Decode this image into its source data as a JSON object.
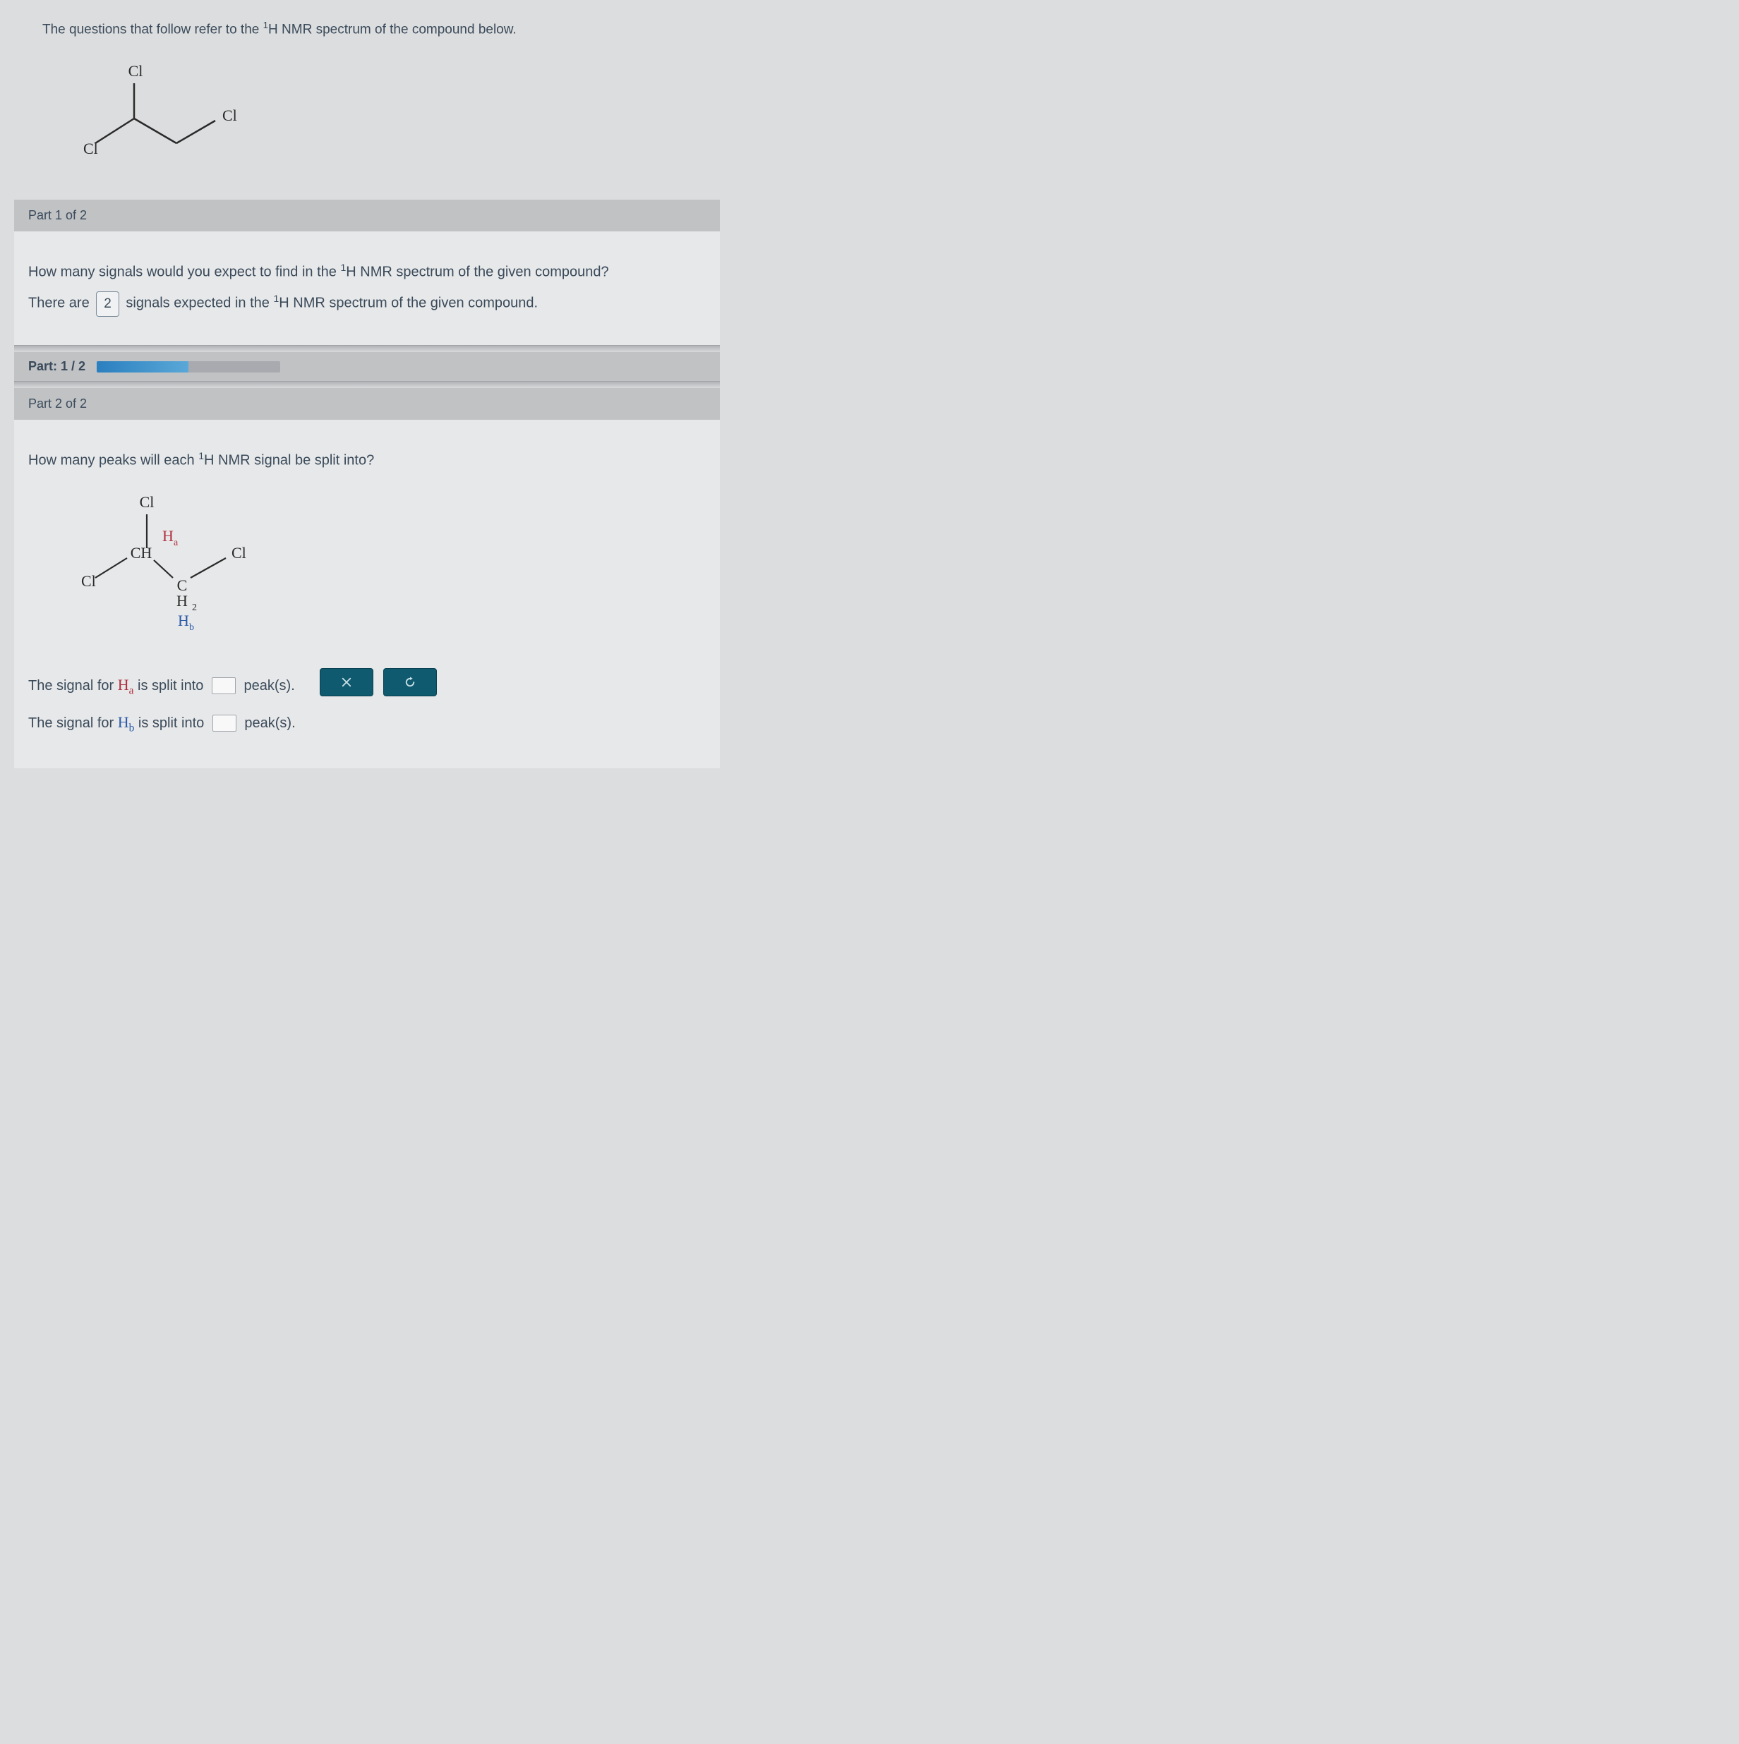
{
  "intro_prefix": "The questions that follow refer to the ",
  "intro_suffix": " NMR spectrum of the compound below.",
  "hnmr_super": "1",
  "hnmr_letter": "H",
  "structure1": {
    "labels": {
      "cl_top": "Cl",
      "cl_left": "Cl",
      "cl_right": "Cl"
    },
    "stroke": "#2a2a2a",
    "stroke_width": 2.5,
    "font_size": 22,
    "font_family": "Times New Roman, serif"
  },
  "part1": {
    "header": "Part 1 of 2",
    "question_prefix": "How many signals would you expect to find in the ",
    "question_suffix": " NMR spectrum of the given compound?",
    "answer_prefix": "There are",
    "answer_value": "2",
    "answer_mid": "signals expected in the ",
    "answer_suffix": " NMR spectrum of the given compound."
  },
  "progress": {
    "label_prefix": "Part:",
    "label_value": "1 / 2",
    "percent": 50
  },
  "part2": {
    "header": "Part 2 of 2",
    "question_prefix": "How many peaks will each ",
    "question_suffix": " NMR signal be split into?",
    "ha_prefix": "The signal for ",
    "ha_symbol": "H",
    "ha_sub": "a",
    "ha_mid": " is split into",
    "ha_suffix": "peak(s).",
    "hb_prefix": "The signal for ",
    "hb_symbol": "H",
    "hb_sub": "b",
    "hb_mid": " is split into",
    "hb_suffix": "peak(s)."
  },
  "structure2": {
    "labels": {
      "cl_top": "Cl",
      "cl_left": "Cl",
      "cl_right": "Cl",
      "ch_left": "CH",
      "c_right": "C",
      "h2_right": "H",
      "two": "2",
      "h_a": "H",
      "a": "a",
      "h_b": "H",
      "b": "b"
    },
    "stroke": "#2a2a2a",
    "stroke_width": 2.2,
    "font_size": 22,
    "font_family": "Times New Roman, serif",
    "ha_color": "#b03040",
    "hb_color": "#2a5aa8"
  },
  "buttons": {
    "clear_title": "Clear",
    "reset_title": "Reset"
  }
}
